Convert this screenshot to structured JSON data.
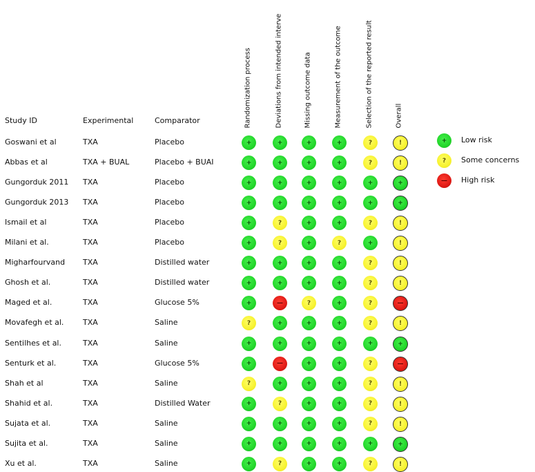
{
  "headers": {
    "study": "Study ID",
    "experimental": "Experimental",
    "comparator": "Comparator"
  },
  "domains": [
    "Randomization process",
    "Deviations from intended interve",
    "Missing outcome data",
    "Measurement of the outcome",
    "Selection of the reported result",
    "Overall"
  ],
  "symbols": {
    "low": "+",
    "some": "?",
    "high": "—",
    "overall_some": "!"
  },
  "rows": [
    {
      "study": "Goswani et al",
      "experimental": "TXA",
      "comparator": "Placebo",
      "ratings": [
        "low",
        "low",
        "low",
        "low",
        "some",
        "some"
      ]
    },
    {
      "study": "Abbas et al",
      "experimental": "TXA + BUAL",
      "comparator": "Placebo + BUAI",
      "ratings": [
        "low",
        "low",
        "low",
        "low",
        "some",
        "some"
      ]
    },
    {
      "study": "Gungorduk 2011",
      "experimental": "TXA",
      "comparator": "Placebo",
      "ratings": [
        "low",
        "low",
        "low",
        "low",
        "low",
        "low"
      ]
    },
    {
      "study": "Gungorduk 2013",
      "experimental": "TXA",
      "comparator": "Placebo",
      "ratings": [
        "low",
        "low",
        "low",
        "low",
        "low",
        "low"
      ]
    },
    {
      "study": "Ismail et al",
      "experimental": "TXA",
      "comparator": "Placebo",
      "ratings": [
        "low",
        "some",
        "low",
        "low",
        "some",
        "some"
      ]
    },
    {
      "study": "Milani et al.",
      "experimental": "TXA",
      "comparator": "Placebo",
      "ratings": [
        "low",
        "some",
        "low",
        "some",
        "low",
        "some"
      ]
    },
    {
      "study": "Migharfourvand",
      "experimental": "TXA",
      "comparator": "Distilled water",
      "ratings": [
        "low",
        "low",
        "low",
        "low",
        "some",
        "some"
      ]
    },
    {
      "study": "Ghosh et al.",
      "experimental": "TXA",
      "comparator": "Distilled water",
      "ratings": [
        "low",
        "low",
        "low",
        "low",
        "some",
        "some"
      ]
    },
    {
      "study": "Maged et al.",
      "experimental": "TXA",
      "comparator": "Glucose 5%",
      "ratings": [
        "low",
        "high",
        "some",
        "low",
        "some",
        "high"
      ]
    },
    {
      "study": "Movafegh et al.",
      "experimental": "TXA",
      "comparator": "Saline",
      "ratings": [
        "some",
        "low",
        "low",
        "low",
        "some",
        "some"
      ]
    },
    {
      "study": "Sentilhes et al.",
      "experimental": "TXA",
      "comparator": "Saline",
      "ratings": [
        "low",
        "low",
        "low",
        "low",
        "low",
        "low"
      ]
    },
    {
      "study": "Senturk et al.",
      "experimental": "TXA",
      "comparator": "Glucose 5%",
      "ratings": [
        "low",
        "high",
        "low",
        "low",
        "some",
        "high"
      ]
    },
    {
      "study": "Shah et al",
      "experimental": "TXA",
      "comparator": "Saline",
      "ratings": [
        "some",
        "low",
        "low",
        "low",
        "some",
        "some"
      ]
    },
    {
      "study": "Shahid et al.",
      "experimental": "TXA",
      "comparator": "Distilled Water",
      "ratings": [
        "low",
        "some",
        "low",
        "low",
        "some",
        "some"
      ]
    },
    {
      "study": "Sujata et al.",
      "experimental": "TXA",
      "comparator": "Saline",
      "ratings": [
        "low",
        "low",
        "low",
        "low",
        "some",
        "some"
      ]
    },
    {
      "study": "Sujita et al.",
      "experimental": "TXA",
      "comparator": "Saline",
      "ratings": [
        "low",
        "low",
        "low",
        "low",
        "low",
        "low"
      ]
    },
    {
      "study": "Xu et al.",
      "experimental": "TXA",
      "comparator": "Saline",
      "ratings": [
        "low",
        "some",
        "low",
        "low",
        "some",
        "some"
      ]
    }
  ],
  "legend": [
    {
      "key": "low",
      "label": "Low risk"
    },
    {
      "key": "some",
      "label": "Some concerns"
    },
    {
      "key": "high",
      "label": "High risk"
    }
  ]
}
